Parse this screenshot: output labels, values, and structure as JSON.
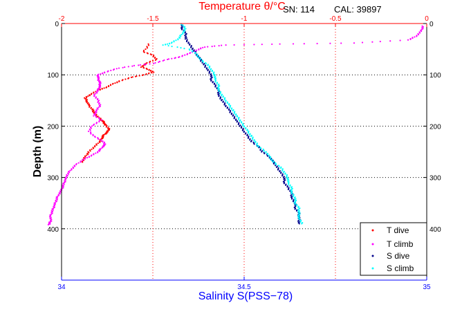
{
  "header": {
    "serial": "SN: 114",
    "cal": "CAL: 39897"
  },
  "colors": {
    "t_dive": "#ff0000",
    "t_climb": "#ff00ff",
    "s_dive": "#00008b",
    "s_climb": "#00ffff",
    "temp_axis": "#ff0000",
    "sal_axis": "#0000ff"
  },
  "chart_data": {
    "type": "scatter",
    "ylabel": "Depth (m)",
    "ylim": [
      0,
      500
    ],
    "yreverse": true,
    "yticks": [
      "0",
      "100",
      "200",
      "300",
      "400"
    ],
    "yticks_right": [
      "0",
      "100",
      "200",
      "300",
      "400"
    ],
    "top_axis": {
      "label_prefix": "Temperature ",
      "label_symbol": "θ",
      "label_suffix": "/°C",
      "range": [
        -2,
        0
      ],
      "ticks": [
        "-2",
        "-1.5",
        "-1",
        "-0.5",
        "0"
      ]
    },
    "bottom_axis": {
      "label": "Salinity S(PSS−78)",
      "range": [
        34,
        35
      ],
      "ticks": [
        "34",
        "34.5",
        "35"
      ]
    },
    "grid": true,
    "legend_position": "bottom-right",
    "series": [
      {
        "name": "T dive",
        "axis": "temperature",
        "color_key": "t_dive",
        "points": [
          [
            -1.52,
            40
          ],
          [
            -1.55,
            55
          ],
          [
            -1.5,
            62
          ],
          [
            -1.48,
            70
          ],
          [
            -1.54,
            78
          ],
          [
            -1.56,
            85
          ],
          [
            -1.52,
            90
          ],
          [
            -1.5,
            95
          ],
          [
            -1.55,
            100
          ],
          [
            -1.62,
            105
          ],
          [
            -1.68,
            112
          ],
          [
            -1.72,
            118
          ],
          [
            -1.76,
            125
          ],
          [
            -1.8,
            130
          ],
          [
            -1.84,
            138
          ],
          [
            -1.87,
            145
          ],
          [
            -1.86,
            152
          ],
          [
            -1.85,
            160
          ],
          [
            -1.83,
            168
          ],
          [
            -1.82,
            175
          ],
          [
            -1.8,
            182
          ],
          [
            -1.78,
            188
          ],
          [
            -1.77,
            192
          ],
          [
            -1.76,
            198
          ],
          [
            -1.74,
            205
          ],
          [
            -1.75,
            212
          ],
          [
            -1.77,
            218
          ],
          [
            -1.78,
            224
          ],
          [
            -1.79,
            230
          ],
          [
            -1.82,
            240
          ],
          [
            -1.85,
            250
          ],
          [
            -1.87,
            260
          ],
          [
            -1.89,
            270
          ]
        ]
      },
      {
        "name": "T climb",
        "axis": "temperature",
        "color_key": "t_climb",
        "points": [
          [
            -0.02,
            5
          ],
          [
            -0.03,
            15
          ],
          [
            -0.06,
            25
          ],
          [
            -0.1,
            32
          ],
          [
            -0.4,
            38
          ],
          [
            -0.8,
            40
          ],
          [
            -1.1,
            42
          ],
          [
            -1.22,
            46
          ],
          [
            -1.26,
            52
          ],
          [
            -1.3,
            58
          ],
          [
            -1.35,
            65
          ],
          [
            -1.42,
            70
          ],
          [
            -1.5,
            78
          ],
          [
            -1.6,
            82
          ],
          [
            -1.7,
            88
          ],
          [
            -1.76,
            95
          ],
          [
            -1.8,
            100
          ],
          [
            -1.8,
            108
          ],
          [
            -1.79,
            115
          ],
          [
            -1.79,
            122
          ],
          [
            -1.8,
            130
          ],
          [
            -1.82,
            140
          ],
          [
            -1.8,
            150
          ],
          [
            -1.79,
            160
          ],
          [
            -1.81,
            170
          ],
          [
            -1.82,
            180
          ],
          [
            -1.78,
            188
          ],
          [
            -1.83,
            198
          ],
          [
            -1.85,
            210
          ],
          [
            -1.82,
            220
          ],
          [
            -1.78,
            228
          ],
          [
            -1.76,
            235
          ],
          [
            -1.78,
            242
          ],
          [
            -1.8,
            250
          ],
          [
            -1.84,
            258
          ],
          [
            -1.88,
            265
          ],
          [
            -1.92,
            275
          ],
          [
            -1.95,
            285
          ],
          [
            -1.97,
            295
          ],
          [
            -1.98,
            305
          ],
          [
            -1.99,
            315
          ],
          [
            -2.0,
            325
          ],
          [
            -2.02,
            335
          ],
          [
            -2.03,
            345
          ],
          [
            -2.04,
            355
          ],
          [
            -2.05,
            365
          ],
          [
            -2.06,
            375
          ],
          [
            -2.06,
            385
          ],
          [
            -2.07,
            392
          ]
        ]
      },
      {
        "name": "S dive",
        "axis": "salinity",
        "color_key": "s_dive",
        "points": [
          [
            34.33,
            2
          ],
          [
            34.33,
            10
          ],
          [
            34.34,
            20
          ],
          [
            34.34,
            30
          ],
          [
            34.35,
            40
          ],
          [
            34.36,
            50
          ],
          [
            34.37,
            60
          ],
          [
            34.38,
            70
          ],
          [
            34.39,
            80
          ],
          [
            34.4,
            90
          ],
          [
            34.41,
            100
          ],
          [
            34.41,
            110
          ],
          [
            34.42,
            120
          ],
          [
            34.43,
            130
          ],
          [
            34.43,
            140
          ],
          [
            34.44,
            150
          ],
          [
            34.45,
            160
          ],
          [
            34.46,
            170
          ],
          [
            34.47,
            180
          ],
          [
            34.48,
            190
          ],
          [
            34.49,
            200
          ],
          [
            34.5,
            210
          ],
          [
            34.51,
            220
          ],
          [
            34.52,
            230
          ],
          [
            34.54,
            240
          ],
          [
            34.55,
            250
          ],
          [
            34.57,
            260
          ],
          [
            34.58,
            270
          ],
          [
            34.59,
            280
          ],
          [
            34.6,
            290
          ],
          [
            34.61,
            300
          ],
          [
            34.61,
            310
          ],
          [
            34.62,
            320
          ],
          [
            34.63,
            330
          ],
          [
            34.63,
            340
          ],
          [
            34.64,
            350
          ],
          [
            34.64,
            360
          ],
          [
            34.65,
            370
          ],
          [
            34.65,
            380
          ],
          [
            34.65,
            390
          ]
        ]
      },
      {
        "name": "S climb",
        "axis": "salinity",
        "color_key": "s_climb",
        "points": [
          [
            34.33,
            2
          ],
          [
            34.34,
            10
          ],
          [
            34.33,
            20
          ],
          [
            34.32,
            30
          ],
          [
            34.3,
            38
          ],
          [
            34.28,
            42
          ],
          [
            34.35,
            50
          ],
          [
            34.37,
            60
          ],
          [
            34.38,
            70
          ],
          [
            34.4,
            80
          ],
          [
            34.41,
            90
          ],
          [
            34.42,
            100
          ],
          [
            34.42,
            110
          ],
          [
            34.43,
            120
          ],
          [
            34.43,
            130
          ],
          [
            34.44,
            140
          ],
          [
            34.45,
            150
          ],
          [
            34.46,
            160
          ],
          [
            34.47,
            170
          ],
          [
            34.48,
            180
          ],
          [
            34.49,
            190
          ],
          [
            34.5,
            200
          ],
          [
            34.51,
            210
          ],
          [
            34.52,
            220
          ],
          [
            34.53,
            230
          ],
          [
            34.54,
            240
          ],
          [
            34.56,
            250
          ],
          [
            34.57,
            260
          ],
          [
            34.58,
            270
          ],
          [
            34.6,
            280
          ],
          [
            34.61,
            290
          ],
          [
            34.62,
            300
          ],
          [
            34.62,
            310
          ],
          [
            34.63,
            320
          ],
          [
            34.63,
            330
          ],
          [
            34.64,
            340
          ],
          [
            34.64,
            350
          ],
          [
            34.65,
            360
          ],
          [
            34.65,
            370
          ],
          [
            34.65,
            380
          ],
          [
            34.66,
            390
          ]
        ]
      }
    ]
  }
}
